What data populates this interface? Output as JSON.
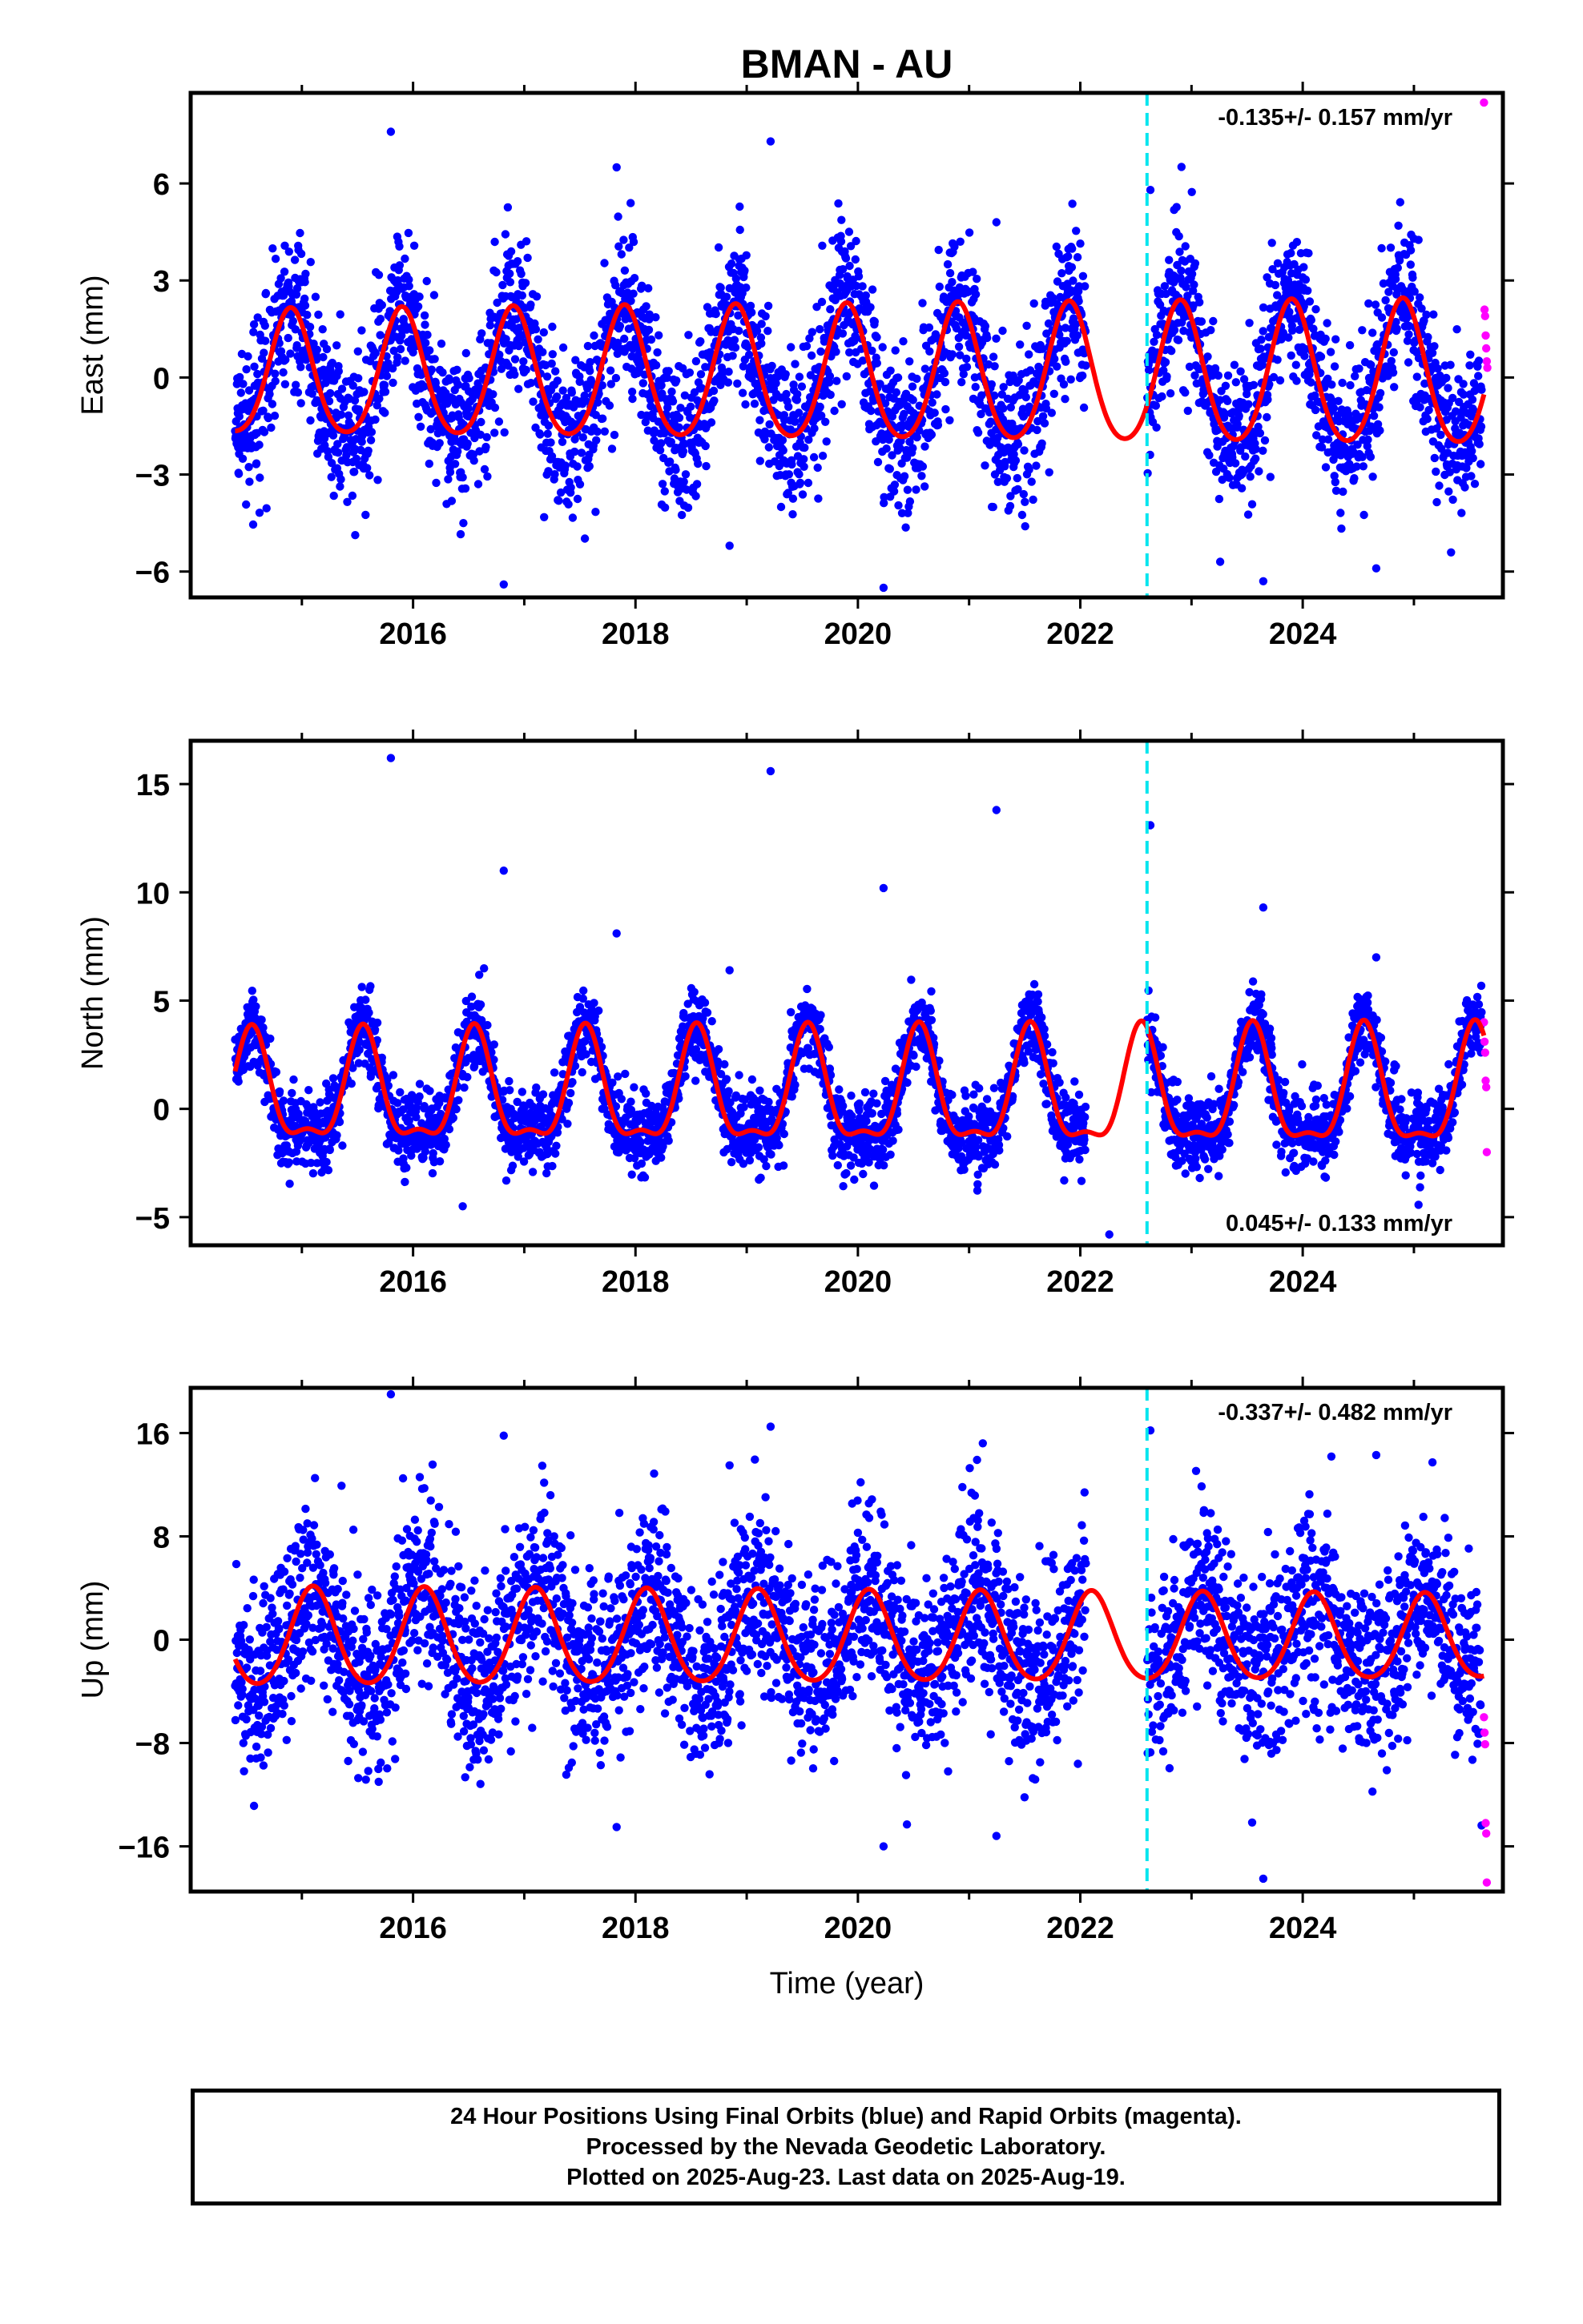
{
  "title": "BMAN - AU",
  "colors": {
    "final": "#0000ff",
    "rapid": "#ff00ff",
    "model": "#ff0000",
    "step": "#00e5ee"
  },
  "footer": {
    "line1": "24 Hour Positions Using Final Orbits (blue) and Rapid Orbits (magenta).",
    "line2": "Processed by the Nevada Geodetic Laboratory.",
    "line3": "Plotted on 2025-Aug-23. Last data on 2025-Aug-19."
  },
  "chart_data": [
    {
      "type": "scatter",
      "component": "east",
      "ylabel": "East (mm)",
      "xlabel": "",
      "xlim": [
        2014.0,
        2025.8
      ],
      "ylim": [
        -6.8,
        8.8
      ],
      "xticks": [
        2016,
        2018,
        2020,
        2022,
        2024
      ],
      "yticks": [
        -6,
        -3,
        0,
        3,
        6
      ],
      "ytick_labels": [
        "−6",
        "−3",
        "0",
        "3",
        "6"
      ],
      "rate_text": "-0.135+/- 0.157 mm/yr",
      "rate_position": "top-right",
      "equipment_change": 2022.6,
      "data_start": 2014.4,
      "data_end": 2025.63,
      "model": {
        "offset_mm": 0.0,
        "annual_amp_mm": 1.9,
        "annual_peak": 2014.9,
        "semiannual_amp_mm": 0.25,
        "amp_trend_mm_per_yr": 0.03
      },
      "scatter_sd_mm": 1.2,
      "outliers_mm": [
        7.6,
        7.3,
        5.8,
        -6.4,
        -6.5,
        -6.3,
        6.5,
        4.8,
        -5.9,
        -5.2
      ],
      "rapid_values_mm": [
        8.5,
        2.1,
        1.9,
        1.3,
        0.9,
        0.5,
        0.3
      ]
    },
    {
      "type": "scatter",
      "component": "north",
      "ylabel": "North (mm)",
      "xlabel": "",
      "xlim": [
        2014.0,
        2025.8
      ],
      "ylim": [
        -6.3,
        17.0
      ],
      "xticks": [
        2016,
        2018,
        2020,
        2022,
        2024
      ],
      "yticks": [
        -5,
        0,
        5,
        10,
        15
      ],
      "ytick_labels": [
        "−5",
        "0",
        "5",
        "10",
        "15"
      ],
      "rate_text": "0.045+/- 0.133 mm/yr",
      "rate_position": "bottom-right",
      "equipment_change": 2022.6,
      "data_start": 2014.4,
      "data_end": 2025.63,
      "model": {
        "offset_mm": 0.6,
        "annual_amp_mm": 2.4,
        "annual_peak": 2014.55,
        "semiannual_amp_mm": 0.9,
        "amp_trend_mm_per_yr": 0.02
      },
      "scatter_sd_mm": 0.9,
      "outliers_mm": [
        16.2,
        15.6,
        13.1,
        11.0,
        10.2,
        9.3,
        8.1,
        13.8,
        7.0,
        6.4,
        -5.8,
        -4.5
      ],
      "rapid_values_mm": [
        4.0,
        3.1,
        2.6,
        1.3,
        1.0,
        -2.0
      ]
    },
    {
      "type": "scatter",
      "component": "up",
      "ylabel": "Up (mm)",
      "xlabel": "Time (year)",
      "xlim": [
        2014.0,
        2025.8
      ],
      "ylim": [
        -19.5,
        19.5
      ],
      "xticks": [
        2016,
        2018,
        2020,
        2022,
        2024
      ],
      "yticks": [
        -16,
        -8,
        0,
        8,
        16
      ],
      "ytick_labels": [
        "−16",
        "−8",
        "0",
        "8",
        "16"
      ],
      "rate_text": "-0.337+/- 0.482 mm/yr",
      "rate_position": "top-right",
      "equipment_change": 2022.6,
      "data_start": 2014.4,
      "data_end": 2025.63,
      "model": {
        "offset_mm": 0.0,
        "annual_amp_mm": 3.8,
        "annual_peak": 2015.1,
        "semiannual_amp_mm": 0.4,
        "amp_trend_mm_per_yr": -0.05
      },
      "scatter_sd_mm": 3.6,
      "outliers_mm": [
        19.0,
        16.5,
        16.2,
        15.8,
        -16.0,
        -18.5,
        -14.5,
        -15.2,
        14.3,
        13.5
      ],
      "rapid_values_mm": [
        -6.0,
        -7.2,
        -8.1,
        -14.2,
        -15.0,
        -18.8
      ]
    }
  ]
}
